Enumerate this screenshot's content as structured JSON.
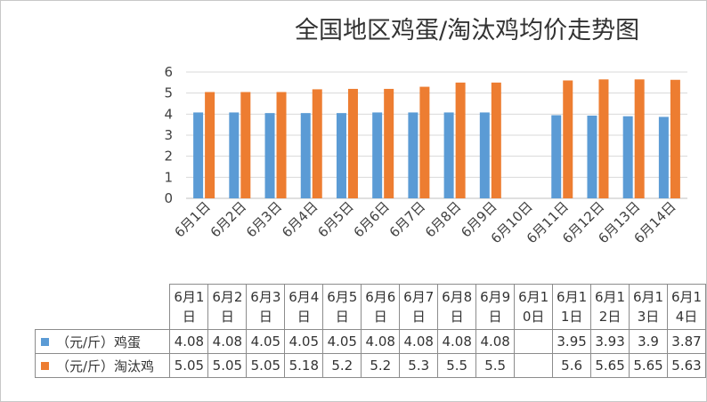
{
  "chart_data": {
    "type": "bar",
    "title": "全国地区鸡蛋/淘汰鸡均价走势图",
    "categories": [
      "6月1日",
      "6月2日",
      "6月3日",
      "6月4日",
      "6月5日",
      "6月6日",
      "6月7日",
      "6月8日",
      "6月9日",
      "6月10日",
      "6月11日",
      "6月12日",
      "6月13日",
      "6月14日"
    ],
    "ylim": [
      0,
      6
    ],
    "yticks": [
      "0",
      "1",
      "2",
      "3",
      "4",
      "5",
      "6"
    ],
    "grid": true,
    "legend": "bottom-left (data table)",
    "series": [
      {
        "name": "（元/斤）鸡蛋",
        "color": "#5b9bd5",
        "values": [
          4.08,
          4.08,
          4.05,
          4.05,
          4.05,
          4.08,
          4.08,
          4.08,
          4.08,
          null,
          3.95,
          3.93,
          3.9,
          3.87
        ],
        "labels": [
          "4.08",
          "4.08",
          "4.05",
          "4.05",
          "4.05",
          "4.08",
          "4.08",
          "4.08",
          "4.08",
          "",
          "3.95",
          "3.93",
          "3.9",
          "3.87"
        ]
      },
      {
        "name": "（元/斤）淘汰鸡",
        "color": "#ed7d31",
        "values": [
          5.05,
          5.05,
          5.05,
          5.18,
          5.2,
          5.2,
          5.3,
          5.5,
          5.5,
          null,
          5.6,
          5.65,
          5.65,
          5.63
        ],
        "labels": [
          "5.05",
          "5.05",
          "5.05",
          "5.18",
          "5.2",
          "5.2",
          "5.3",
          "5.5",
          "5.5",
          "",
          "5.6",
          "5.65",
          "5.65",
          "5.63"
        ]
      }
    ]
  },
  "table": {
    "date_headers": [
      "6月1日",
      "6月2日",
      "6月3日",
      "6月4日",
      "6月5日",
      "6月6日",
      "6月7日",
      "6月8日",
      "6月9日",
      "6月10日",
      "6月11日",
      "6月12日",
      "6月13日",
      "6月14日"
    ]
  }
}
